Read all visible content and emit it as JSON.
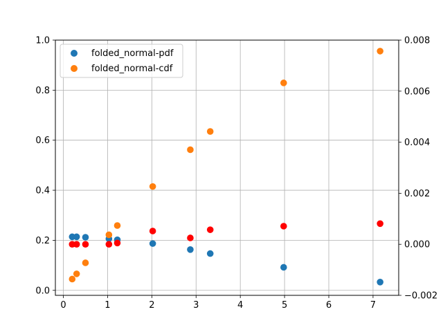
{
  "chart_data": {
    "type": "scatter",
    "title": "",
    "xlabel": "",
    "ylabel": "",
    "xlim": [
      -0.18,
      7.58
    ],
    "ylim": [
      -0.02,
      1.0
    ],
    "y2lim": [
      -0.002,
      0.008
    ],
    "xticks": [
      0,
      1,
      2,
      3,
      4,
      5,
      6,
      7
    ],
    "yticks": [
      0.0,
      0.2,
      0.4,
      0.6,
      0.8,
      1.0
    ],
    "y2ticks": [
      -0.002,
      0.0,
      0.002,
      0.004,
      0.006,
      0.008
    ],
    "xtick_labels": [
      "0",
      "1",
      "2",
      "3",
      "4",
      "5",
      "6",
      "7"
    ],
    "ytick_labels": [
      "0.0",
      "0.2",
      "0.4",
      "0.6",
      "0.8",
      "1.0"
    ],
    "y2tick_labels": [
      "−0.002",
      "0.000",
      "0.002",
      "0.004",
      "0.006",
      "0.008"
    ],
    "grid": true,
    "legend_position": "top-left",
    "x": [
      0.2,
      0.3,
      0.5,
      1.03,
      1.22,
      2.02,
      2.87,
      3.32,
      4.98,
      7.16
    ],
    "series": [
      {
        "name": "folded_normal-pdf",
        "axis": "left",
        "color": "#1f77b4",
        "values": [
          0.214,
          0.214,
          0.212,
          0.206,
          0.202,
          0.187,
          0.163,
          0.147,
          0.092,
          0.033
        ]
      },
      {
        "name": "folded_normal-cdf",
        "axis": "left",
        "color": "#ff7f0e",
        "values": [
          0.045,
          0.066,
          0.11,
          0.222,
          0.259,
          0.415,
          0.562,
          0.635,
          0.829,
          0.956
        ]
      },
      {
        "axis": "right",
        "color": "#ff0000",
        "values": [
          0.0,
          0.0,
          0.0,
          0.0,
          5e-05,
          0.00052,
          0.00025,
          0.00057,
          0.00071,
          0.00081
        ]
      }
    ]
  }
}
